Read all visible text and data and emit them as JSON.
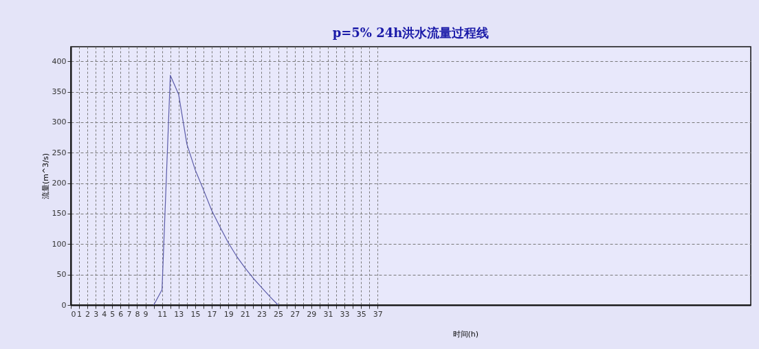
{
  "chart_data": {
    "type": "line",
    "title": "p=5%  24h洪水流量过程线",
    "xlabel": "时间(h)",
    "ylabel": "流量(m^3/s)",
    "series": [
      {
        "color": "#5a5aa8",
        "x": [
          10,
          11,
          12,
          13,
          14,
          15,
          16,
          17,
          18,
          19,
          20,
          21,
          22,
          23,
          24,
          25
        ],
        "values": [
          0,
          25,
          377,
          346,
          264,
          222,
          189,
          155,
          128,
          102,
          80,
          61,
          44,
          29,
          14,
          0
        ]
      }
    ],
    "xlim": [
      0,
      82
    ],
    "ylim": [
      0,
      424
    ],
    "xticks": [
      0,
      1,
      2,
      3,
      4,
      5,
      6,
      7,
      8,
      9,
      {
        "value": 10,
        "label": null
      },
      11,
      {
        "value": 12,
        "label": null
      },
      13,
      {
        "value": 14,
        "label": null
      },
      15,
      {
        "value": 16,
        "label": null
      },
      17,
      {
        "value": 18,
        "label": null
      },
      19,
      {
        "value": 20,
        "label": null
      },
      21,
      {
        "value": 22,
        "label": null
      },
      23,
      {
        "value": 24,
        "label": null
      },
      25,
      {
        "value": 26,
        "label": null
      },
      27,
      {
        "value": 28,
        "label": null
      },
      29,
      {
        "value": 30,
        "label": null
      },
      31,
      {
        "value": 32,
        "label": null
      },
      33,
      {
        "value": 34,
        "label": null
      },
      35,
      {
        "value": 36,
        "label": null
      },
      37
    ],
    "yticks": [
      0,
      50,
      100,
      150,
      200,
      250,
      300,
      350,
      400
    ],
    "grid": true,
    "line_style": "solid",
    "marker": "none"
  }
}
